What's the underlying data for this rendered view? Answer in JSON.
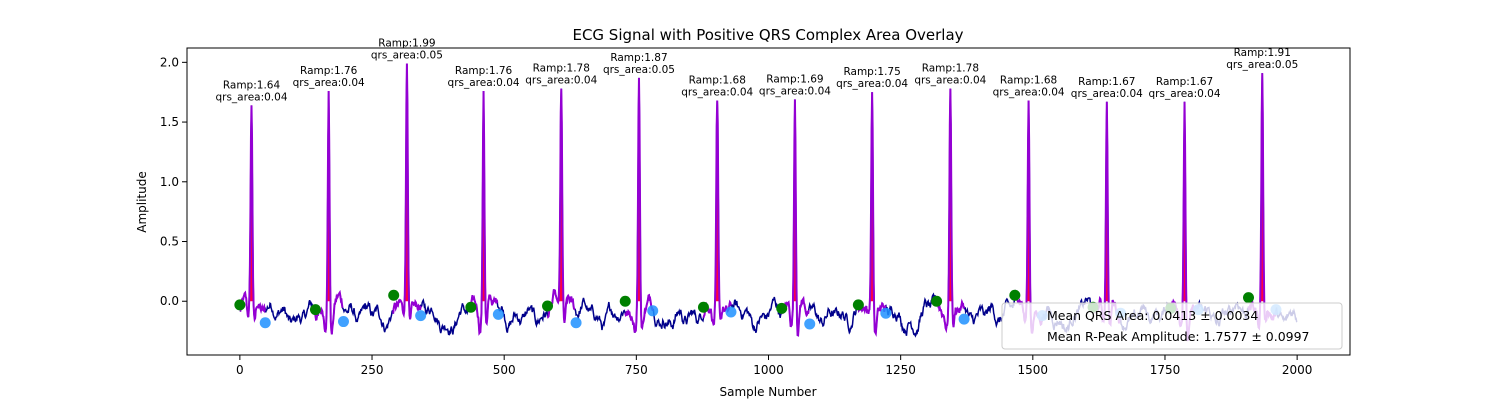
{
  "chart_data": {
    "type": "line",
    "title": "ECG Signal with Positive QRS Complex Area Overlay",
    "xlabel": "Sample Number",
    "ylabel": "Amplitude",
    "xlim": [
      -100,
      2100
    ],
    "ylim": [
      -0.45,
      2.12
    ],
    "xticks": [
      0,
      250,
      500,
      750,
      1000,
      1250,
      1500,
      1750,
      2000
    ],
    "yticks": [
      0.0,
      0.5,
      1.0,
      1.5,
      2.0
    ],
    "xtick_labels": [
      "0",
      "250",
      "500",
      "750",
      "1000",
      "1250",
      "1500",
      "1750",
      "2000"
    ],
    "ytick_labels": [
      "0.0",
      "0.5",
      "1.0",
      "1.5",
      "2.0"
    ],
    "grid": false,
    "legend_position": "lower-right",
    "colors": {
      "signal": "#00008b",
      "qrs_segment": "#9400d3",
      "qrs_area_fill": "#ff0040",
      "onset_marker": "#008000",
      "offset_marker": "#1e90ff"
    },
    "beats": [
      {
        "r_x": 22,
        "r_amp": 1.64,
        "qrs_area": 0.04,
        "label_ramp": "Ramp:1.64",
        "label_area": "qrs_area:0.04",
        "onset_x": 0,
        "onset_y": -0.03,
        "offset_x": 48,
        "offset_y": -0.18
      },
      {
        "r_x": 168,
        "r_amp": 1.76,
        "qrs_area": 0.04,
        "label_ramp": "Ramp:1.76",
        "label_area": "qrs_area:0.04",
        "onset_x": 143,
        "onset_y": -0.07,
        "offset_x": 196,
        "offset_y": -0.17
      },
      {
        "r_x": 316,
        "r_amp": 1.99,
        "qrs_area": 0.05,
        "label_ramp": "Ramp:1.99",
        "label_area": "qrs_area:0.05",
        "onset_x": 291,
        "onset_y": 0.05,
        "offset_x": 342,
        "offset_y": -0.12
      },
      {
        "r_x": 461,
        "r_amp": 1.76,
        "qrs_area": 0.04,
        "label_ramp": "Ramp:1.76",
        "label_area": "qrs_area:0.04",
        "onset_x": 437,
        "onset_y": -0.05,
        "offset_x": 489,
        "offset_y": -0.11
      },
      {
        "r_x": 608,
        "r_amp": 1.78,
        "qrs_area": 0.04,
        "label_ramp": "Ramp:1.78",
        "label_area": "qrs_area:0.04",
        "onset_x": 582,
        "onset_y": -0.04,
        "offset_x": 636,
        "offset_y": -0.18
      },
      {
        "r_x": 755,
        "r_amp": 1.87,
        "qrs_area": 0.05,
        "label_ramp": "Ramp:1.87",
        "label_area": "qrs_area:0.05",
        "onset_x": 729,
        "onset_y": 0.0,
        "offset_x": 781,
        "offset_y": -0.08
      },
      {
        "r_x": 903,
        "r_amp": 1.68,
        "qrs_area": 0.04,
        "label_ramp": "Ramp:1.68",
        "label_area": "qrs_area:0.04",
        "onset_x": 877,
        "onset_y": -0.05,
        "offset_x": 929,
        "offset_y": -0.09
      },
      {
        "r_x": 1050,
        "r_amp": 1.69,
        "qrs_area": 0.04,
        "label_ramp": "Ramp:1.69",
        "label_area": "qrs_area:0.04",
        "onset_x": 1025,
        "onset_y": -0.06,
        "offset_x": 1078,
        "offset_y": -0.19
      },
      {
        "r_x": 1196,
        "r_amp": 1.75,
        "qrs_area": 0.04,
        "label_ramp": "Ramp:1.75",
        "label_area": "qrs_area:0.04",
        "onset_x": 1170,
        "onset_y": -0.03,
        "offset_x": 1222,
        "offset_y": -0.1
      },
      {
        "r_x": 1344,
        "r_amp": 1.78,
        "qrs_area": 0.04,
        "label_ramp": "Ramp:1.78",
        "label_area": "qrs_area:0.04",
        "onset_x": 1318,
        "onset_y": 0.0,
        "offset_x": 1370,
        "offset_y": -0.15
      },
      {
        "r_x": 1492,
        "r_amp": 1.68,
        "qrs_area": 0.04,
        "label_ramp": "Ramp:1.68",
        "label_area": "qrs_area:0.04",
        "onset_x": 1466,
        "onset_y": 0.05,
        "offset_x": 1518,
        "offset_y": -0.12
      },
      {
        "r_x": 1640,
        "r_amp": 1.67,
        "qrs_area": 0.04,
        "label_ramp": "Ramp:1.67",
        "label_area": "qrs_area:0.04",
        "onset_x": 1614,
        "onset_y": -0.05,
        "offset_x": 1666,
        "offset_y": -0.1
      },
      {
        "r_x": 1787,
        "r_amp": 1.67,
        "qrs_area": 0.04,
        "label_ramp": "Ramp:1.67",
        "label_area": "qrs_area:0.04",
        "onset_x": 1761,
        "onset_y": -0.06,
        "offset_x": 1813,
        "offset_y": -0.07
      },
      {
        "r_x": 1934,
        "r_amp": 1.91,
        "qrs_area": 0.05,
        "label_ramp": "Ramp:1.91",
        "label_area": "qrs_area:0.05",
        "onset_x": 1908,
        "onset_y": 0.03,
        "offset_x": 1960,
        "offset_y": -0.07
      }
    ],
    "legend": [
      {
        "label": "Mean QRS Area: 0.0413 ± 0.0034"
      },
      {
        "label": "Mean R-Peak Amplitude: 1.7577 ± 0.0997"
      }
    ]
  }
}
